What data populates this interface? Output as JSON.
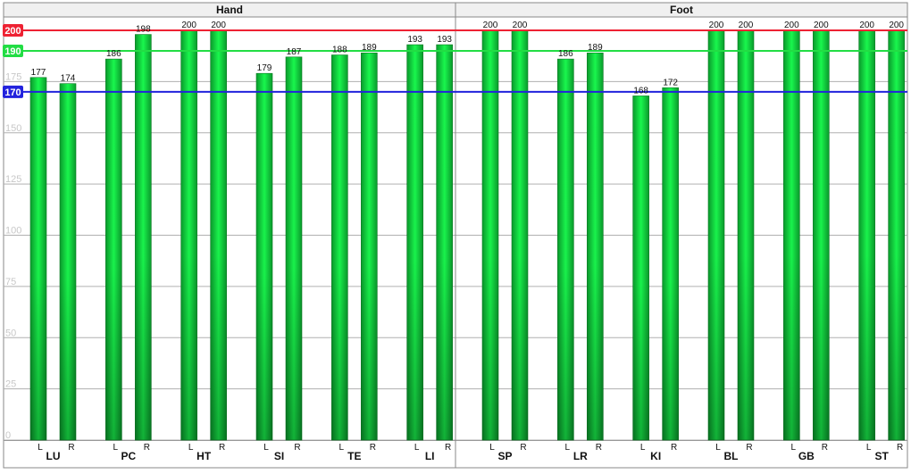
{
  "chart_data": {
    "type": "bar",
    "ylim": [
      0,
      200
    ],
    "yticks": [
      0,
      25,
      50,
      75,
      100,
      125,
      150,
      175
    ],
    "grid": true,
    "groups": [
      {
        "name": "Hand",
        "meridians": [
          {
            "name": "LU",
            "L": 177,
            "R": 174
          },
          {
            "name": "PC",
            "L": 186,
            "R": 198
          },
          {
            "name": "HT",
            "L": 200,
            "R": 200
          },
          {
            "name": "SI",
            "L": 179,
            "R": 187
          },
          {
            "name": "TE",
            "L": 188,
            "R": 189
          },
          {
            "name": "LI",
            "L": 193,
            "R": 193
          }
        ]
      },
      {
        "name": "Foot",
        "meridians": [
          {
            "name": "SP",
            "L": 200,
            "R": 200
          },
          {
            "name": "LR",
            "L": 186,
            "R": 189
          },
          {
            "name": "KI",
            "L": 168,
            "R": 172
          },
          {
            "name": "BL",
            "L": 200,
            "R": 200
          },
          {
            "name": "GB",
            "L": 200,
            "R": 200
          },
          {
            "name": "ST",
            "L": 200,
            "R": 200
          }
        ]
      }
    ],
    "side_labels": {
      "left": "L",
      "right": "R"
    },
    "reference_lines": [
      {
        "value": 200,
        "label": "200",
        "color": "#ee2233"
      },
      {
        "value": 190,
        "label": "190",
        "color": "#22dd44"
      },
      {
        "value": 170,
        "label": "170",
        "color": "#2222dd"
      }
    ],
    "colors": {
      "bar_light": "#19f74d",
      "bar_dark": "#0a8a28",
      "grid": "#b0b0b0",
      "tick_text": "#c8c8c8",
      "header_bg": "#f0f0f0"
    }
  }
}
